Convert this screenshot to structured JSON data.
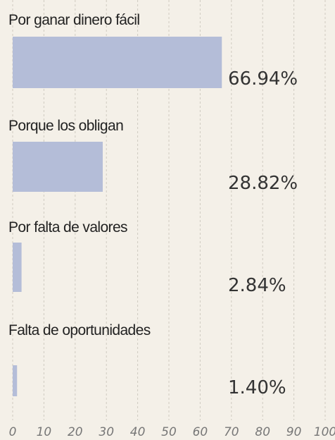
{
  "chart_data": {
    "type": "barh",
    "categories": [
      "Por ganar dinero fácil",
      "Porque los obligan",
      "Por falta de valores",
      "Falta de oportunidades"
    ],
    "values": [
      66.94,
      28.82,
      2.84,
      1.4
    ],
    "value_labels": [
      "66.94%",
      "28.82%",
      "2.84%",
      "1.40%"
    ],
    "color": "#b4bdd8",
    "xlim": [
      0,
      100
    ],
    "xticks": [
      0,
      10,
      20,
      30,
      40,
      50,
      60,
      70,
      80,
      90,
      100
    ],
    "grid": true
  }
}
